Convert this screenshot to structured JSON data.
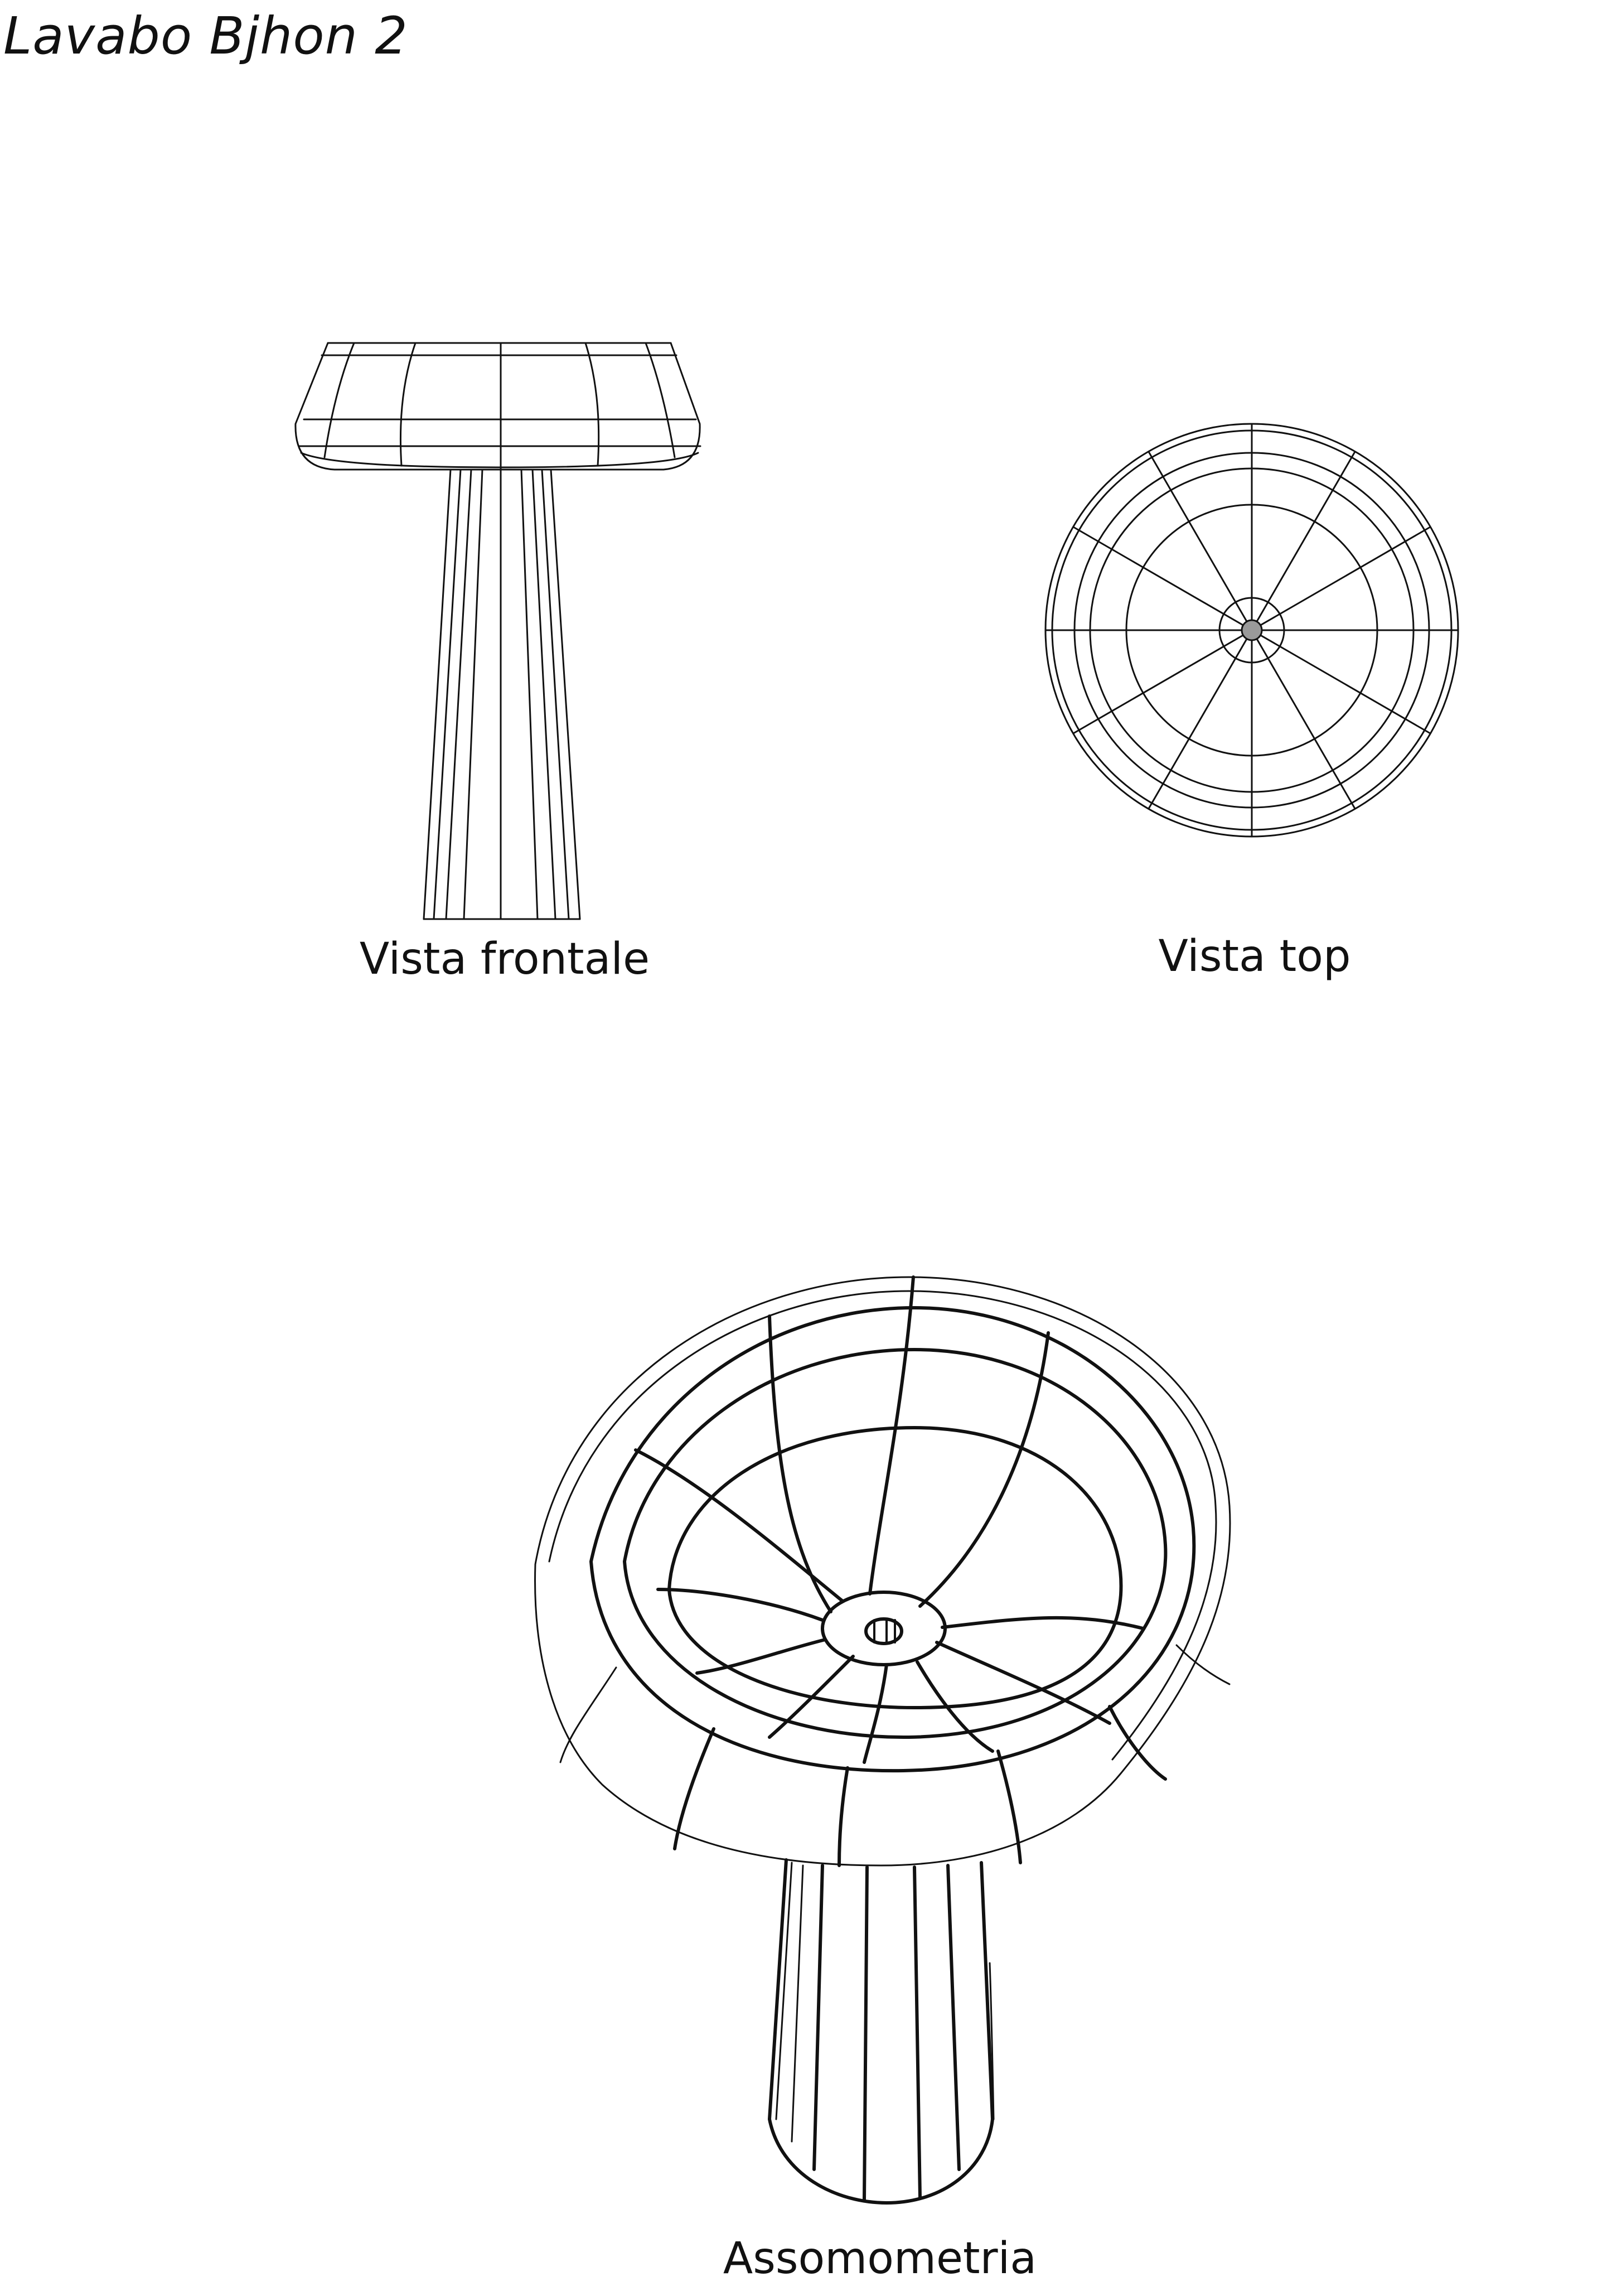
{
  "sheet": {
    "title": "Lavabo Bjhon 2"
  },
  "views": {
    "front_caption": "Vista frontale",
    "top_caption": "Vista top",
    "axonometric_caption": "Assomometria"
  },
  "style": {
    "line_color": "#111111",
    "background": "#ffffff",
    "drain_fill": "#9a9a9a"
  }
}
